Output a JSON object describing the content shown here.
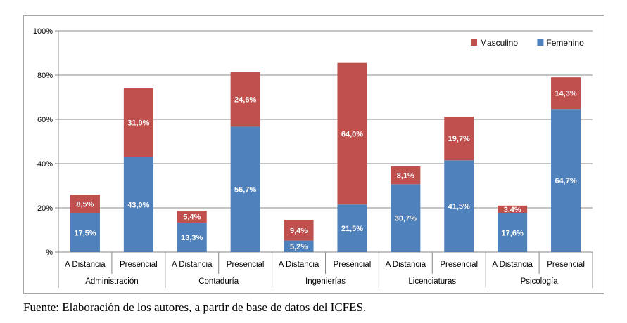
{
  "chart_data": {
    "type": "bar",
    "stacked": true,
    "groups": [
      "Administración",
      "Contaduría",
      "Ingenierías",
      "Licenciaturas",
      "Psicología"
    ],
    "subcategories": [
      "A Distancia",
      "Presencial"
    ],
    "categories": [
      "A Distancia",
      "Presencial",
      "A Distancia",
      "Presencial",
      "A Distancia",
      "Presencial",
      "A Distancia",
      "Presencial",
      "A Distancia",
      "Presencial"
    ],
    "series": [
      {
        "name": "Femenino",
        "color": "#4f81bd",
        "values": [
          17.5,
          43.0,
          13.3,
          56.7,
          5.2,
          21.5,
          30.7,
          41.5,
          17.6,
          64.7
        ],
        "labels": [
          "17,5%",
          "43,0%",
          "13,3%",
          "56,7%",
          "5,2%",
          "21,5%",
          "30,7%",
          "41,5%",
          "17,6%",
          "64,7%"
        ]
      },
      {
        "name": "Masculino",
        "color": "#c0504d",
        "values": [
          8.5,
          31.0,
          5.4,
          24.6,
          9.4,
          64.0,
          8.1,
          19.7,
          3.4,
          14.3
        ],
        "labels": [
          "8,5%",
          "31,0%",
          "5,4%",
          "24,6%",
          "9,4%",
          "64,0%",
          "8,1%",
          "19,7%",
          "3,4%",
          "14,3%"
        ]
      }
    ],
    "legend_order": [
      "Masculino",
      "Femenino"
    ],
    "y_ticks": [
      0,
      20,
      40,
      60,
      80,
      100
    ],
    "y_tick_labels": [
      "%",
      "20%",
      "40%",
      "60%",
      "80%",
      "100%"
    ],
    "ylim": [
      0,
      100
    ],
    "grid": true,
    "legend_position": "top-right"
  },
  "caption": {
    "lead": "Fuente",
    "text": ": Elaboración de los autores, a partir de base de datos del ICFES."
  }
}
